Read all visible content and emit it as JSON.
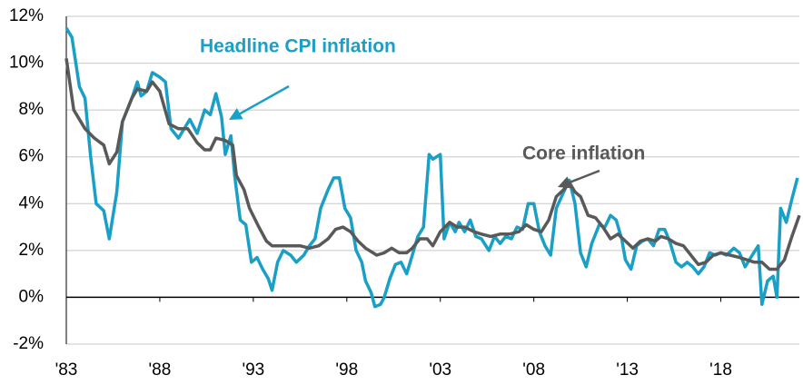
{
  "chart_data": {
    "type": "line",
    "xlim": [
      1983,
      2022.2
    ],
    "xticks": [
      {
        "value": 1983,
        "label": "'83"
      },
      {
        "value": 1988,
        "label": "'88"
      },
      {
        "value": 1993,
        "label": "'93"
      },
      {
        "value": 1998,
        "label": "'98"
      },
      {
        "value": 2003,
        "label": "'03"
      },
      {
        "value": 2008,
        "label": "'08"
      },
      {
        "value": 2013,
        "label": "'13"
      },
      {
        "value": 2018,
        "label": "'18"
      }
    ],
    "ylim": [
      -2,
      12
    ],
    "yticks": [
      {
        "value": -2,
        "label": "-2%"
      },
      {
        "value": 0,
        "label": "0%"
      },
      {
        "value": 2,
        "label": "2%"
      },
      {
        "value": 4,
        "label": "4%"
      },
      {
        "value": 6,
        "label": "6%"
      },
      {
        "value": 8,
        "label": "8%"
      },
      {
        "value": 10,
        "label": "10%"
      },
      {
        "value": 12,
        "label": "12%"
      }
    ],
    "grid": true,
    "series": [
      {
        "name": "Headline CPI inflation",
        "color": "#1a9fc6",
        "x": [
          1983.0,
          1983.3,
          1983.7,
          1984.0,
          1984.3,
          1984.6,
          1985.0,
          1985.3,
          1985.7,
          1986.0,
          1986.5,
          1986.8,
          1987.0,
          1987.3,
          1987.6,
          1988.0,
          1988.3,
          1988.6,
          1989.0,
          1989.3,
          1989.6,
          1990.0,
          1990.4,
          1990.7,
          1991.0,
          1991.3,
          1991.5,
          1991.8,
          1992.0,
          1992.3,
          1992.6,
          1992.9,
          1993.2,
          1993.5,
          1993.8,
          1994.0,
          1994.3,
          1994.6,
          1995.0,
          1995.3,
          1995.7,
          1996.0,
          1996.3,
          1996.6,
          1997.0,
          1997.3,
          1997.6,
          1997.9,
          1998.2,
          1998.5,
          1998.8,
          1999.0,
          1999.3,
          1999.5,
          1999.8,
          2000.0,
          2000.3,
          2000.6,
          2000.9,
          2001.2,
          2001.5,
          2001.8,
          2002.1,
          2002.4,
          2002.6,
          2003.0,
          2003.2,
          2003.5,
          2003.8,
          2004.0,
          2004.3,
          2004.6,
          2004.9,
          2005.2,
          2005.6,
          2005.9,
          2006.2,
          2006.5,
          2006.8,
          2007.1,
          2007.4,
          2007.7,
          2008.0,
          2008.3,
          2008.6,
          2008.9,
          2009.2,
          2009.6,
          2009.9,
          2010.2,
          2010.5,
          2010.8,
          2011.1,
          2011.5,
          2011.8,
          2012.1,
          2012.4,
          2012.7,
          2012.9,
          2013.2,
          2013.5,
          2013.8,
          2014.1,
          2014.4,
          2014.7,
          2015.0,
          2015.3,
          2015.6,
          2015.9,
          2016.2,
          2016.5,
          2016.8,
          2017.1,
          2017.4,
          2017.7,
          2018.0,
          2018.3,
          2018.7,
          2019.0,
          2019.3,
          2019.6,
          2020.0,
          2020.2,
          2020.5,
          2020.8,
          2021.0,
          2021.2,
          2021.5,
          2021.8,
          2022.1
        ],
        "values": [
          11.5,
          11.1,
          9,
          8.5,
          6,
          4,
          3.7,
          2.5,
          4.5,
          7.5,
          8.5,
          9.2,
          8.6,
          8.8,
          9.6,
          9.4,
          9.2,
          7.2,
          6.8,
          7.2,
          7.6,
          7.0,
          8.0,
          7.8,
          8.7,
          7.7,
          6.1,
          6.9,
          5.2,
          3.3,
          3.1,
          1.5,
          1.7,
          1.2,
          0.8,
          0.3,
          1.5,
          2.0,
          1.8,
          1.5,
          1.8,
          2.2,
          2.5,
          3.8,
          4.6,
          5.1,
          5.1,
          3.8,
          3.4,
          2.0,
          1.5,
          0.7,
          0.2,
          -0.4,
          -0.3,
          0.0,
          0.8,
          1.4,
          1.5,
          1.0,
          1.8,
          2.6,
          3.0,
          6.1,
          5.9,
          6.1,
          2.5,
          3.2,
          2.8,
          3.2,
          2.8,
          3.3,
          2.6,
          2.5,
          2.0,
          2.6,
          2.3,
          2.6,
          2.5,
          3.0,
          2.9,
          4.0,
          4.0,
          2.8,
          2.2,
          1.8,
          3.8,
          4.5,
          5.0,
          4.0,
          1.9,
          1.3,
          2.3,
          3.1,
          3.0,
          3.5,
          3.3,
          2.5,
          1.6,
          1.2,
          2.2,
          2.4,
          2.5,
          2.2,
          2.9,
          2.9,
          2.3,
          1.5,
          1.3,
          1.5,
          1.3,
          1.0,
          1.3,
          1.9,
          1.8,
          1.9,
          1.8,
          2.1,
          1.9,
          1.3,
          1.7,
          2.2,
          -0.3,
          0.7,
          0.9,
          0.0,
          3.8,
          3.2,
          4.2,
          5.1
        ]
      },
      {
        "name": "Core inflation",
        "color": "#595959",
        "x": [
          1983.0,
          1983.4,
          1984.0,
          1984.5,
          1985.0,
          1985.3,
          1985.7,
          1986.0,
          1986.5,
          1986.8,
          1987.3,
          1987.6,
          1988.0,
          1988.5,
          1989.0,
          1989.5,
          1990.0,
          1990.4,
          1990.7,
          1991.0,
          1991.5,
          1991.9,
          1992.1,
          1992.5,
          1992.8,
          1993.3,
          1993.7,
          1994.0,
          1995.0,
          1995.5,
          1996.0,
          1996.5,
          1997.0,
          1997.4,
          1997.8,
          1998.2,
          1998.6,
          1999.0,
          1999.4,
          1999.6,
          2000.0,
          2000.4,
          2000.8,
          2001.2,
          2001.5,
          2001.9,
          2002.3,
          2002.6,
          2003.0,
          2003.5,
          2003.9,
          2004.3,
          2004.8,
          2005.2,
          2005.7,
          2006.2,
          2006.7,
          2007.2,
          2007.6,
          2008.0,
          2008.4,
          2008.8,
          2009.2,
          2009.6,
          2009.9,
          2010.2,
          2010.5,
          2010.9,
          2011.3,
          2011.7,
          2012.1,
          2012.5,
          2012.9,
          2013.3,
          2013.7,
          2014.1,
          2014.5,
          2014.8,
          2015.2,
          2015.6,
          2016.0,
          2016.4,
          2016.8,
          2017.2,
          2017.6,
          2018.0,
          2018.5,
          2019.0,
          2019.4,
          2019.8,
          2020.2,
          2020.6,
          2021.0,
          2021.4,
          2021.8,
          2022.2
        ],
        "values": [
          10.2,
          8,
          7.2,
          6.8,
          6.5,
          5.7,
          6.2,
          7.5,
          8.5,
          8.9,
          8.8,
          9.2,
          8.8,
          7.4,
          7.2,
          7.2,
          6.6,
          6.3,
          6.3,
          6.8,
          6.7,
          6.5,
          5.2,
          4.6,
          3.8,
          3.0,
          2.4,
          2.2,
          2.2,
          2.2,
          2.1,
          2.2,
          2.5,
          2.9,
          3.0,
          2.8,
          2.4,
          2.1,
          1.9,
          1.8,
          1.9,
          2.1,
          1.9,
          1.9,
          2.1,
          2.5,
          2.5,
          2.2,
          2.8,
          3.2,
          3.0,
          3.0,
          2.8,
          2.7,
          2.6,
          2.7,
          2.7,
          2.8,
          3.1,
          2.9,
          2.8,
          3.3,
          4.3,
          4.6,
          4.9,
          4.5,
          4.3,
          3.5,
          3.4,
          3.0,
          2.5,
          2.7,
          2.4,
          2.1,
          2.4,
          2.5,
          2.4,
          2.6,
          2.5,
          2.3,
          2.2,
          1.8,
          1.4,
          1.5,
          1.8,
          1.9,
          1.8,
          1.7,
          1.6,
          1.5,
          1.5,
          1.2,
          1.2,
          1.6,
          2.6,
          3.5
        ]
      }
    ]
  }
}
